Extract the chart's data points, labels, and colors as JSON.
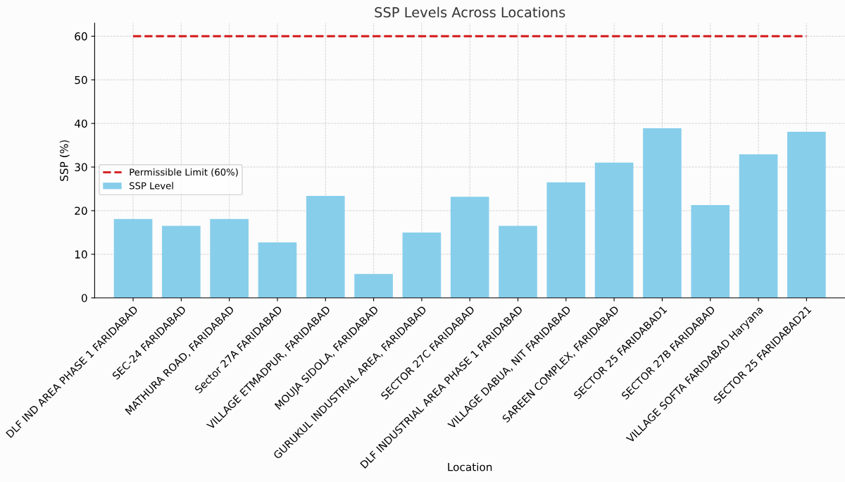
{
  "chart_data": {
    "type": "bar",
    "title": "SSP Levels Across Locations",
    "xlabel": "Location",
    "ylabel": "SSP (%)",
    "categories": [
      "DLF IND AREA PHASE 1 FARIDABAD",
      "SEC-24 FARIDABAD",
      "MATHURA ROAD, FARIDABAD",
      "Sector 27A FARIDABAD",
      "VILLAGE ETMADPUR, FARIDABAD",
      "MOUJA SIDOLA, FARIDABAD",
      "GURUKUL INDUSTRIAL AREA, FARIDABAD",
      "SECTOR 27C FARIDABAD",
      "DLF INDUSTRIAL AREA PHASE 1 FARIDABAD",
      "VILLAGE DABUA, NIT FARIDABAD",
      "SAREEN COMPLEX, FARIDABAD",
      "SECTOR 25 FARIDABAD1",
      "SECTOR 27B FARIDABAD",
      "VILLAGE SOFTA FARIDABAD Haryana",
      "SECTOR 25 FARIDABAD21"
    ],
    "series": [
      {
        "name": "SSP Level",
        "color": "#87ceeb",
        "values": [
          18.1,
          16.5,
          18.1,
          12.7,
          23.4,
          5.5,
          15.0,
          23.2,
          16.5,
          26.5,
          31.0,
          38.9,
          21.3,
          32.9,
          38.1
        ]
      }
    ],
    "ylim": [
      0,
      63
    ],
    "yticks": [
      0,
      10,
      20,
      30,
      40,
      50,
      60
    ],
    "ref_lines": [
      {
        "axis": "y",
        "value": 60,
        "label": "Permissible Limit (60%)",
        "color": "#d62728",
        "line_style": "dashed"
      }
    ],
    "grid": true,
    "legend": "left"
  }
}
